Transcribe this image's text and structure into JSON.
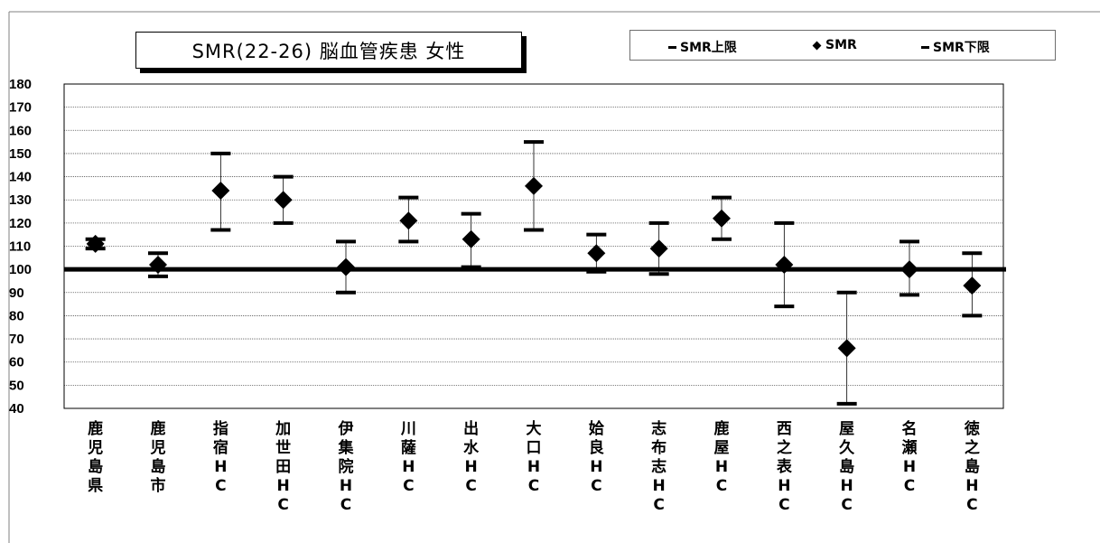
{
  "chart_data": {
    "type": "scatter",
    "title": "SMR(22-26) 脳血管疾患 女性",
    "ylim": [
      40,
      180
    ],
    "yticks": [
      180,
      170,
      160,
      150,
      140,
      130,
      120,
      110,
      100,
      90,
      80,
      70,
      60,
      50,
      40
    ],
    "reference_value": 100,
    "grid": true,
    "legend_position": "top-right",
    "legend": [
      {
        "label": "SMR上限",
        "marker": "dash"
      },
      {
        "label": "SMR",
        "marker": "diamond"
      },
      {
        "label": "SMR下限",
        "marker": "dash"
      }
    ],
    "categories": [
      "鹿児島県",
      "鹿児島市",
      "指宿HC",
      "加世田HC",
      "伊集院HC",
      "川薩HC",
      "出水HC",
      "大口HC",
      "姶良HC",
      "志布志HC",
      "鹿屋HC",
      "西之表HC",
      "屋久島HC",
      "名瀬HC",
      "徳之島HC"
    ],
    "series": [
      {
        "name": "SMR上限",
        "values": [
          113,
          107,
          150,
          140,
          112,
          131,
          124,
          155,
          115,
          120,
          131,
          120,
          90,
          112,
          107
        ]
      },
      {
        "name": "SMR",
        "values": [
          111,
          102,
          134,
          130,
          101,
          121,
          113,
          136,
          107,
          109,
          122,
          102,
          66,
          100,
          93
        ]
      },
      {
        "name": "SMR下限",
        "values": [
          109,
          97,
          117,
          120,
          90,
          112,
          101,
          117,
          99,
          98,
          113,
          84,
          42,
          89,
          80
        ]
      }
    ]
  }
}
